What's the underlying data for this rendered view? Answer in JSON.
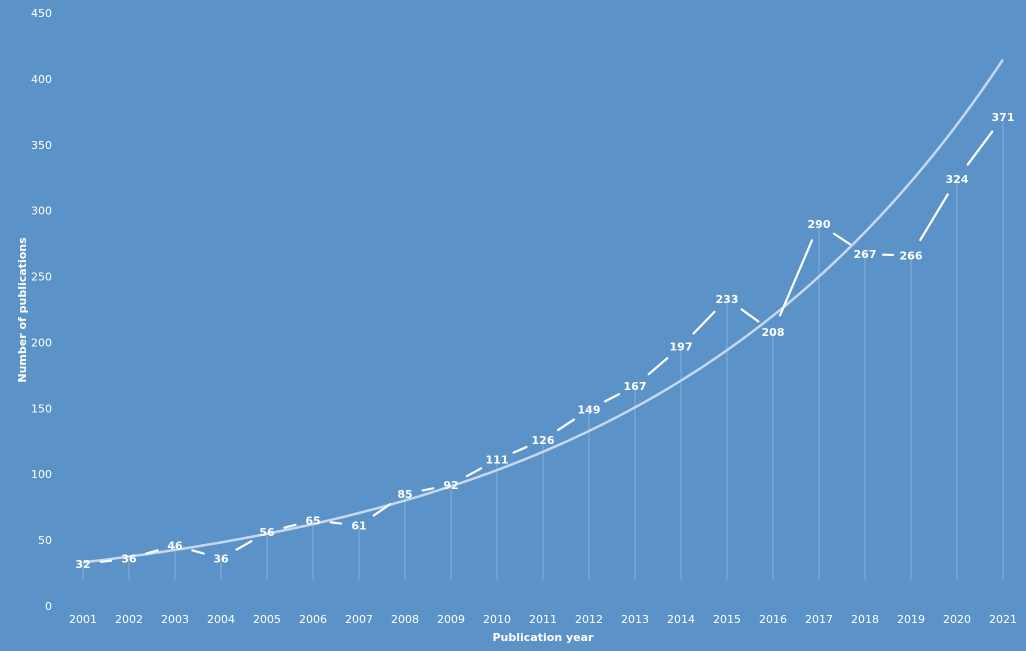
{
  "colors": {
    "background": "#5b92c8",
    "series_line": "#ffffff",
    "trend_line": "#c6d8ef",
    "drop_line": "#8fb5de",
    "text": "#ffffff"
  },
  "chart_data": {
    "type": "line",
    "xlabel": "Publication year",
    "ylabel": "Number of publications",
    "ylim": [
      0,
      450
    ],
    "yticks": [
      0,
      50,
      100,
      150,
      200,
      250,
      300,
      350,
      400,
      450
    ],
    "categories": [
      "2001",
      "2002",
      "2003",
      "2004",
      "2005",
      "2006",
      "2007",
      "2008",
      "2009",
      "2010",
      "2011",
      "2012",
      "2013",
      "2014",
      "2015",
      "2016",
      "2017",
      "2018",
      "2019",
      "2020",
      "2021"
    ],
    "series": [
      {
        "values": [
          32,
          36,
          46,
          36,
          56,
          65,
          61,
          85,
          92,
          111,
          126,
          149,
          167,
          197,
          233,
          208,
          290,
          267,
          266,
          324,
          371
        ],
        "data_labels": true
      }
    ],
    "trendline": {
      "type": "exponential"
    },
    "drop_lines": true,
    "grid": false,
    "legend": "none"
  }
}
